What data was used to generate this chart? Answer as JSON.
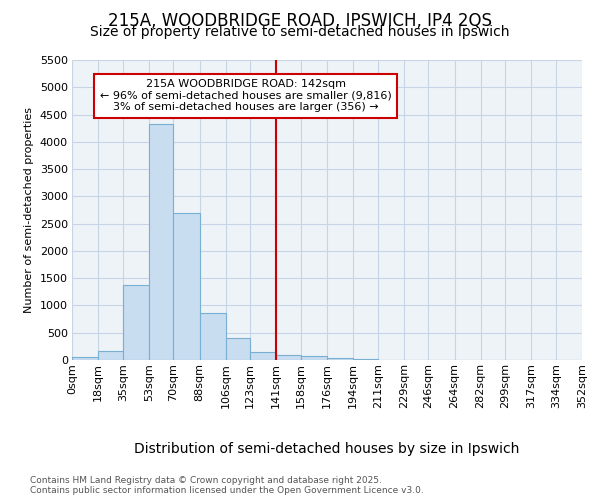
{
  "title_line1": "215A, WOODBRIDGE ROAD, IPSWICH, IP4 2QS",
  "title_line2": "Size of property relative to semi-detached houses in Ipswich",
  "xlabel": "Distribution of semi-detached houses by size in Ipswich",
  "ylabel": "Number of semi-detached properties",
  "annotation_title": "215A WOODBRIDGE ROAD: 142sqm",
  "annotation_line2": "← 96% of semi-detached houses are smaller (9,816)",
  "annotation_line3": "3% of semi-detached houses are larger (356) →",
  "footer_line1": "Contains HM Land Registry data © Crown copyright and database right 2025.",
  "footer_line2": "Contains public sector information licensed under the Open Government Licence v3.0.",
  "bar_edges": [
    0,
    18,
    35,
    53,
    70,
    88,
    106,
    123,
    141,
    158,
    176,
    194,
    211,
    229,
    246,
    264,
    282,
    299,
    317,
    334,
    352
  ],
  "bar_heights": [
    50,
    160,
    1380,
    4320,
    2700,
    870,
    400,
    150,
    100,
    65,
    30,
    10,
    5,
    2,
    1,
    0,
    0,
    0,
    0,
    0
  ],
  "bar_color": "#c8ddf0",
  "bar_edgecolor": "#7aafd4",
  "vline_x": 141,
  "vline_color": "#cc0000",
  "annotation_box_edgecolor": "#cc0000",
  "background_color": "#ffffff",
  "plot_bg_color": "#eef3f8",
  "grid_color": "#c5d5e5",
  "ylim": [
    0,
    5500
  ],
  "yticks": [
    0,
    500,
    1000,
    1500,
    2000,
    2500,
    3000,
    3500,
    4000,
    4500,
    5000,
    5500
  ],
  "tick_labels": [
    "0sqm",
    "18sqm",
    "35sqm",
    "53sqm",
    "70sqm",
    "88sqm",
    "106sqm",
    "123sqm",
    "141sqm",
    "158sqm",
    "176sqm",
    "194sqm",
    "211sqm",
    "229sqm",
    "246sqm",
    "264sqm",
    "282sqm",
    "299sqm",
    "317sqm",
    "334sqm",
    "352sqm"
  ],
  "title1_fontsize": 12,
  "title2_fontsize": 10,
  "annotation_fontsize": 8,
  "ylabel_fontsize": 8,
  "xlabel_fontsize": 10,
  "ytick_fontsize": 8,
  "xtick_fontsize": 8
}
